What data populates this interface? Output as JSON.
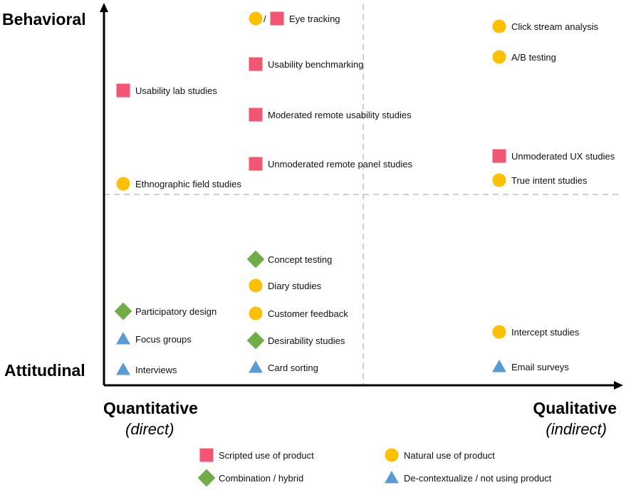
{
  "colors": {
    "scripted": "#f25672",
    "natural": "#ffc000",
    "hybrid": "#70ad47",
    "decontext": "#5b9bd5"
  },
  "axes": {
    "y_top": "Behavioral",
    "y_bottom": "Attitudinal",
    "x_left": "Quantitative",
    "x_left_sub": "(direct)",
    "x_right": "Qualitative",
    "x_right_sub": "(indirect)"
  },
  "eye_tracking_separator": "/",
  "items": [
    {
      "label": "Eye tracking",
      "category": "scripted"
    },
    {
      "label": "Usability benchmarking",
      "category": "scripted"
    },
    {
      "label": "Usability lab studies",
      "category": "scripted"
    },
    {
      "label": "Moderated remote usability studies",
      "category": "scripted"
    },
    {
      "label": "Unmoderated remote panel studies",
      "category": "scripted"
    },
    {
      "label": "Ethnographic field studies",
      "category": "natural"
    },
    {
      "label": "Click stream analysis",
      "category": "natural"
    },
    {
      "label": "A/B testing",
      "category": "natural"
    },
    {
      "label": "Unmoderated UX studies",
      "category": "scripted"
    },
    {
      "label": "True intent studies",
      "category": "natural"
    },
    {
      "label": "Concept testing",
      "category": "hybrid"
    },
    {
      "label": "Diary studies",
      "category": "natural"
    },
    {
      "label": "Customer feedback",
      "category": "natural"
    },
    {
      "label": "Desirability studies",
      "category": "hybrid"
    },
    {
      "label": "Card sorting",
      "category": "decontext"
    },
    {
      "label": "Participatory design",
      "category": "hybrid"
    },
    {
      "label": "Focus groups",
      "category": "decontext"
    },
    {
      "label": "Interviews",
      "category": "decontext"
    },
    {
      "label": "Intercept studies",
      "category": "natural"
    },
    {
      "label": "Email surveys",
      "category": "decontext"
    }
  ],
  "legend": [
    {
      "label": "Scripted use of product",
      "category": "scripted"
    },
    {
      "label": "Natural use of product",
      "category": "natural"
    },
    {
      "label": "Combination / hybrid",
      "category": "hybrid"
    },
    {
      "label": "De-contextualize / not using product",
      "category": "decontext"
    }
  ]
}
